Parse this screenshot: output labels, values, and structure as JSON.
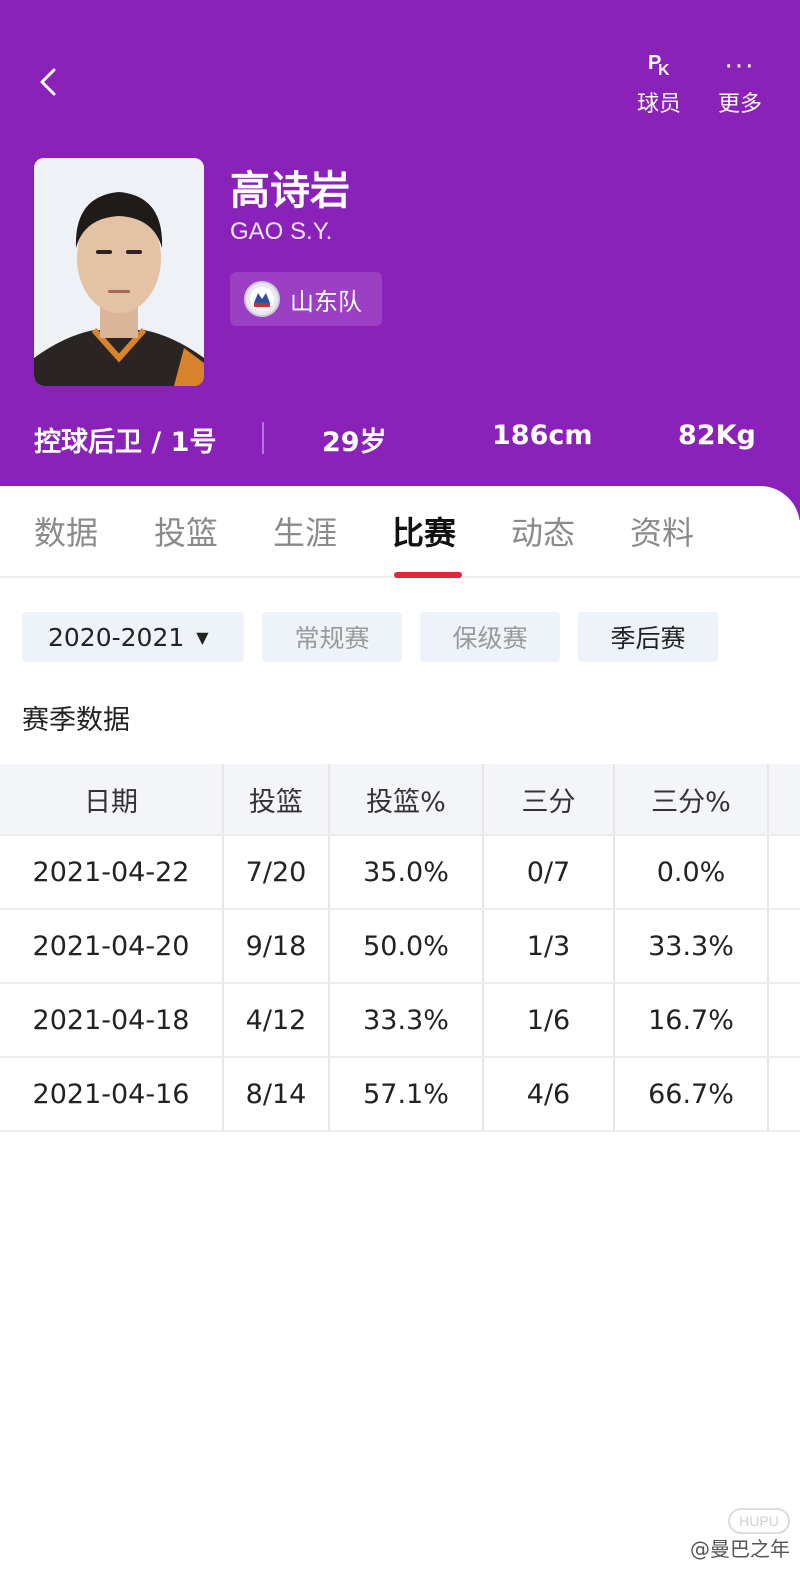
{
  "header": {
    "name": "高诗岩",
    "english_name": "GAO S.Y.",
    "team": "山东队",
    "position": "控球后卫 / 1号",
    "age": "29岁",
    "height": "186cm",
    "weight": "82Kg",
    "bg_color": "#8a22b9",
    "actions": [
      {
        "icon": "pk-icon",
        "label": "球员"
      },
      {
        "icon": "more-icon",
        "label": "更多"
      }
    ],
    "pk_letters": {
      "p": "P",
      "k": "K"
    },
    "more_glyph": "···"
  },
  "tabs": [
    "数据",
    "投篮",
    "生涯",
    "比赛",
    "动态",
    "资料"
  ],
  "active_tab": "比赛",
  "filters": {
    "season": "2020-2021",
    "options": [
      "常规赛",
      "保级赛",
      "季后赛"
    ],
    "active": "季后赛"
  },
  "section_title": "赛季数据",
  "table": {
    "headers": [
      "日期",
      "投篮",
      "投篮%",
      "三分",
      "三分%"
    ],
    "rows": [
      [
        "2021-04-22",
        "7/20",
        "35.0%",
        "0/7",
        "0.0%"
      ],
      [
        "2021-04-20",
        "9/18",
        "50.0%",
        "1/3",
        "33.3%"
      ],
      [
        "2021-04-18",
        "4/12",
        "33.3%",
        "1/6",
        "16.7%"
      ],
      [
        "2021-04-16",
        "8/14",
        "57.1%",
        "4/6",
        "66.7%"
      ]
    ]
  },
  "watermark": "@曼巴之年",
  "watermark_logo": "HUPU",
  "accent_color": "#e0283a"
}
